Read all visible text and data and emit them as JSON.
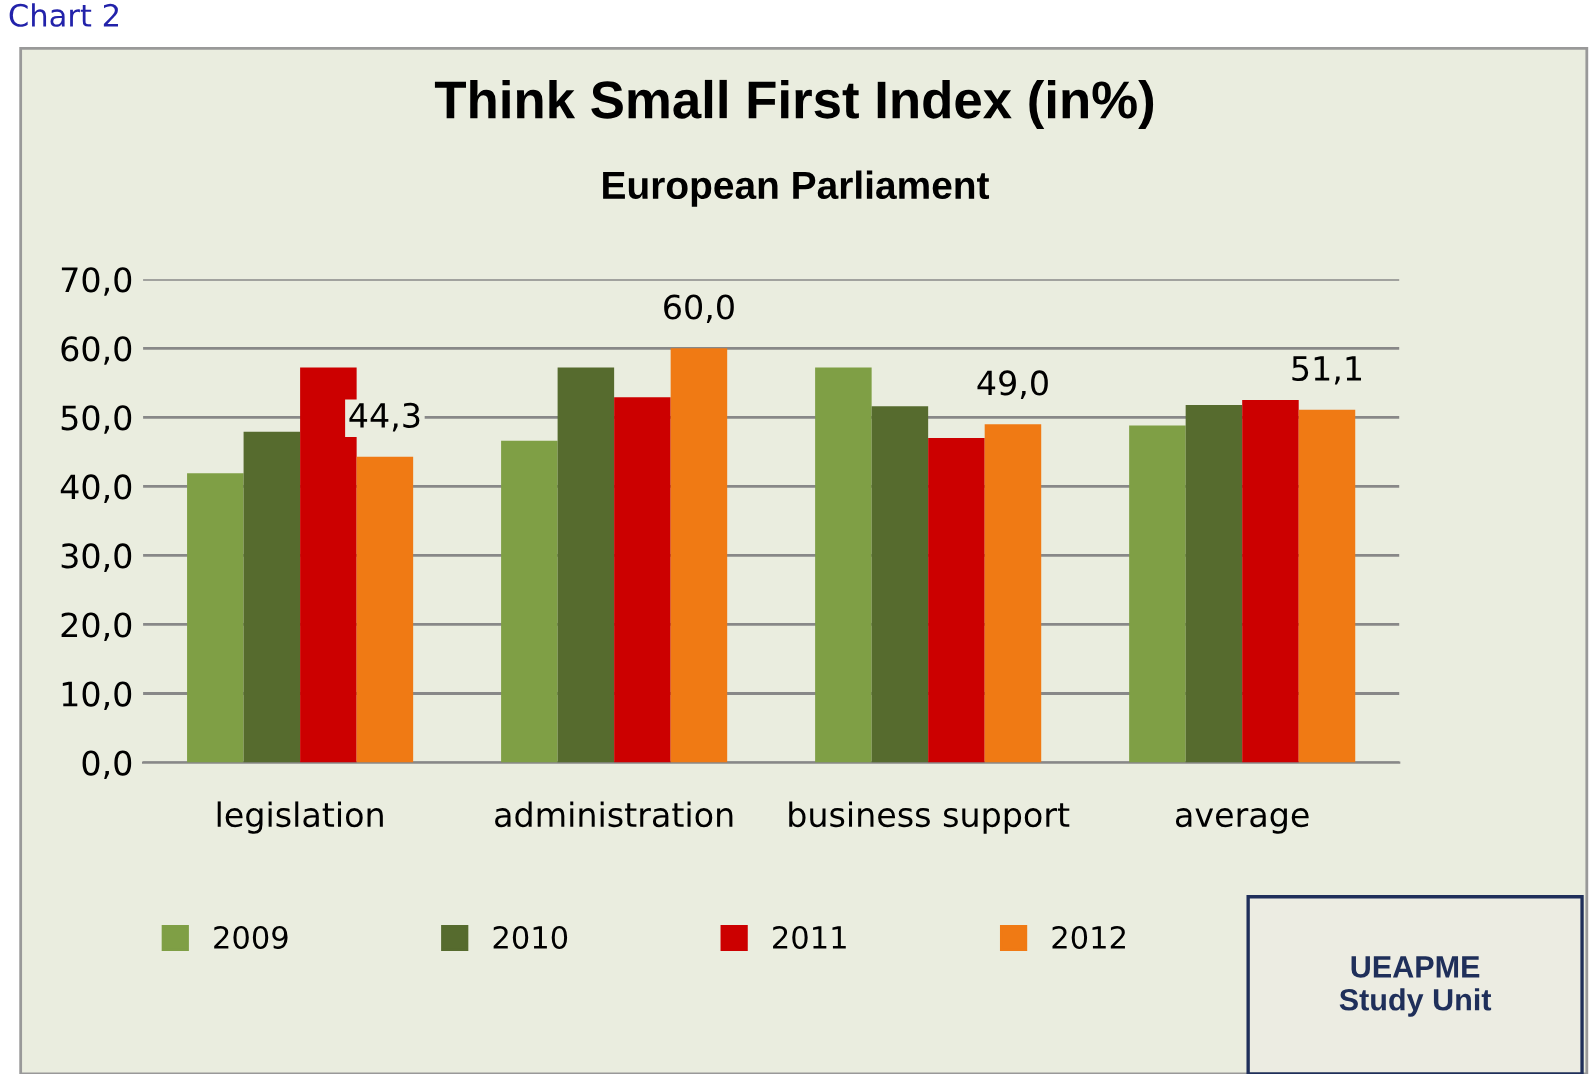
{
  "chart_data": {
    "type": "bar",
    "title": "Think Small First Index (in%)",
    "subtitle": "European Parliament",
    "categories": [
      "legislation",
      "administration",
      "business support",
      "average"
    ],
    "series": [
      {
        "name": "2009",
        "color": "#7f9f45",
        "values": [
          41.9,
          46.6,
          57.2,
          48.8
        ]
      },
      {
        "name": "2010",
        "color": "#566b2e",
        "values": [
          47.9,
          57.2,
          51.6,
          51.8
        ]
      },
      {
        "name": "2011",
        "color": "#cc0000",
        "values": [
          57.2,
          52.9,
          47.0,
          52.5
        ]
      },
      {
        "name": "2012",
        "color": "#f07a14",
        "values": [
          44.3,
          60.0,
          49.0,
          51.1
        ],
        "value_labels": [
          "44,3",
          "60,0",
          "49,0",
          "51,1"
        ]
      }
    ],
    "ylim": [
      0,
      70
    ],
    "yticks": [
      {
        "value": 0,
        "label": "0,0"
      },
      {
        "value": 10,
        "label": "10,0"
      },
      {
        "value": 20,
        "label": "20,0"
      },
      {
        "value": 30,
        "label": "30,0"
      },
      {
        "value": 40,
        "label": "40,0"
      },
      {
        "value": 50,
        "label": "50,0"
      },
      {
        "value": 60,
        "label": "60,0"
      },
      {
        "value": 70,
        "label": "70,0"
      }
    ],
    "grid": "y",
    "legend": "bottom",
    "annotations": [
      "Chart 2",
      "UEAPME\nStudy Unit"
    ]
  }
}
